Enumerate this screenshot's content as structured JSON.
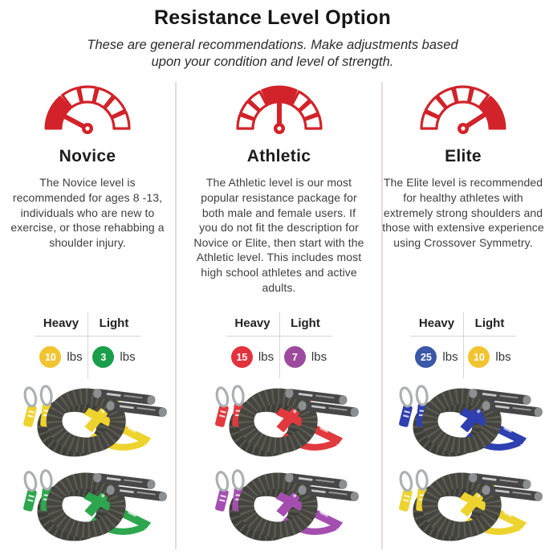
{
  "header": {
    "title": "Resistance Level Option",
    "subtitle": "These are general recommendations. Make adjustments based upon your condition and level of strength."
  },
  "levels": [
    {
      "name": "Novice",
      "gauge": "low",
      "gauge_icon": "speedometer-low-icon",
      "description": "The Novice level is recommended for ages 8 -13, individuals who are new to exercise, or those rehabbing a shoulder injury.",
      "weights": {
        "heavy_label": "Heavy",
        "light_label": "Light",
        "heavy": {
          "value": "10",
          "unit": "lbs",
          "color": "#F2C430"
        },
        "light": {
          "value": "3",
          "unit": "lbs",
          "color": "#1B9E4B"
        }
      },
      "products": [
        {
          "kind": "resistance-band-heavy",
          "strap_color": "#EDD32E"
        },
        {
          "kind": "resistance-band-light",
          "strap_color": "#2EA64E"
        }
      ]
    },
    {
      "name": "Athletic",
      "gauge": "mid",
      "gauge_icon": "speedometer-mid-icon",
      "description": "The Athletic level is our most popular resistance package for both male and female users. If you do not fit the description for Novice or Elite, then start with the Athletic level. This includes most high school athletes and active adults.",
      "weights": {
        "heavy_label": "Heavy",
        "light_label": "Light",
        "heavy": {
          "value": "15",
          "unit": "lbs",
          "color": "#E2323E"
        },
        "light": {
          "value": "7",
          "unit": "lbs",
          "color": "#9D4A9E"
        }
      },
      "products": [
        {
          "kind": "resistance-band-heavy",
          "strap_color": "#E03A3E"
        },
        {
          "kind": "resistance-band-light",
          "strap_color": "#A44FB0"
        }
      ]
    },
    {
      "name": "Elite",
      "gauge": "high",
      "gauge_icon": "speedometer-high-icon",
      "description": "The Elite level is recommended for healthy athletes with extremely strong shoulders and those with extensive experience using Crossover Symmetry.",
      "weights": {
        "heavy_label": "Heavy",
        "light_label": "Light",
        "heavy": {
          "value": "25",
          "unit": "lbs",
          "color": "#3A57A8"
        },
        "light": {
          "value": "10",
          "unit": "lbs",
          "color": "#F2C430"
        }
      },
      "products": [
        {
          "kind": "resistance-band-heavy",
          "strap_color": "#2E3FAF"
        },
        {
          "kind": "resistance-band-light",
          "strap_color": "#EDD32E"
        }
      ]
    }
  ],
  "style": {
    "accent_red": "#D2232A",
    "divider_color": "#E8DAD6"
  }
}
